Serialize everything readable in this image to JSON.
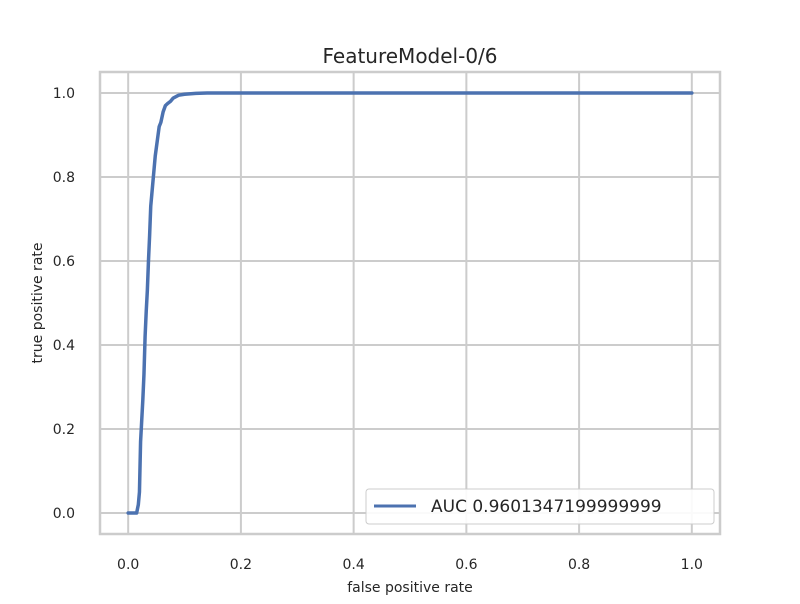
{
  "chart_data": {
    "type": "line",
    "title": "FeatureModel-0/6",
    "xlabel": "false positive rate",
    "ylabel": "true positive rate",
    "xlim": [
      -0.05,
      1.05
    ],
    "ylim": [
      -0.05,
      1.05
    ],
    "xticks": [
      0.0,
      0.2,
      0.4,
      0.6,
      0.8,
      1.0
    ],
    "yticks": [
      0.0,
      0.2,
      0.4,
      0.6,
      0.8,
      1.0
    ],
    "xtick_labels": [
      "0.0",
      "0.2",
      "0.4",
      "0.6",
      "0.8",
      "1.0"
    ],
    "ytick_labels": [
      "0.0",
      "0.2",
      "0.4",
      "0.6",
      "0.8",
      "1.0"
    ],
    "grid": true,
    "legend_position": "lower right",
    "series": [
      {
        "name": "AUC 0.9601347199999999",
        "color": "#4c72b0",
        "x": [
          0.0,
          0.015,
          0.018,
          0.02,
          0.022,
          0.024,
          0.026,
          0.028,
          0.03,
          0.032,
          0.034,
          0.036,
          0.038,
          0.04,
          0.042,
          0.044,
          0.046,
          0.048,
          0.05,
          0.052,
          0.055,
          0.058,
          0.062,
          0.066,
          0.07,
          0.075,
          0.08,
          0.09,
          0.1,
          0.12,
          0.14,
          0.2,
          0.4,
          0.6,
          0.8,
          1.0
        ],
        "y": [
          0.0,
          0.0,
          0.02,
          0.05,
          0.17,
          0.22,
          0.27,
          0.33,
          0.42,
          0.48,
          0.53,
          0.6,
          0.66,
          0.73,
          0.76,
          0.79,
          0.82,
          0.85,
          0.87,
          0.89,
          0.92,
          0.93,
          0.955,
          0.97,
          0.975,
          0.98,
          0.988,
          0.995,
          0.997,
          0.999,
          1.0,
          1.0,
          1.0,
          1.0,
          1.0,
          1.0
        ]
      }
    ]
  }
}
